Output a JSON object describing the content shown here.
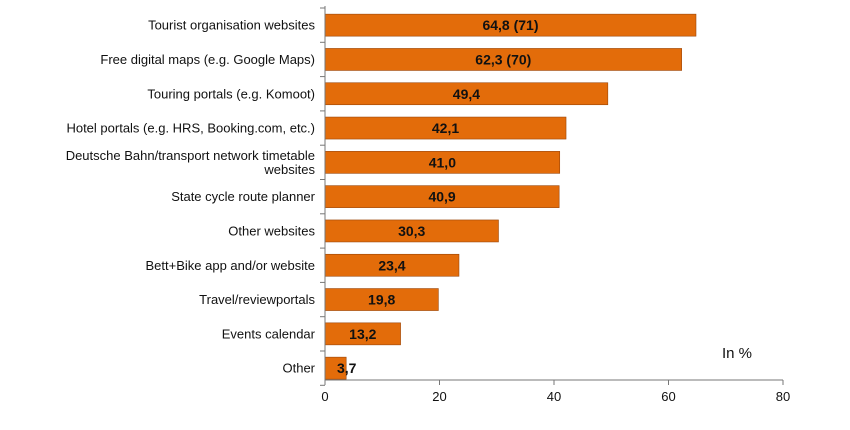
{
  "chart_data": {
    "type": "bar",
    "orientation": "horizontal",
    "categories": [
      "Tourist organisation websites",
      "Free digital maps (e.g. Google Maps)",
      "Touring portals (e.g. Komoot)",
      "Hotel portals (e.g. HRS, Booking.com, etc.)",
      "Deutsche Bahn/transport network timetable websites",
      "State cycle route planner",
      "Other websites",
      "Bett+Bike app and/or website",
      "Travel/reviewportals",
      "Events calendar",
      "Other"
    ],
    "values": [
      64.8,
      62.3,
      49.4,
      42.1,
      41.0,
      40.9,
      30.3,
      23.4,
      19.8,
      13.2,
      3.7
    ],
    "data_labels": [
      "64,8 (71)",
      "62,3 (70)",
      "49,4",
      "42,1",
      "41,0",
      "40,9",
      "30,3",
      "23,4",
      "19,8",
      "13,2",
      "3,7"
    ],
    "xlim": [
      0,
      80
    ],
    "xticks": [
      0,
      20,
      40,
      60,
      80
    ],
    "unit_label": "In %",
    "bar_color": "#e36c0a",
    "bar_edge_color": "#9a4508",
    "grid": false,
    "legend": "none"
  }
}
